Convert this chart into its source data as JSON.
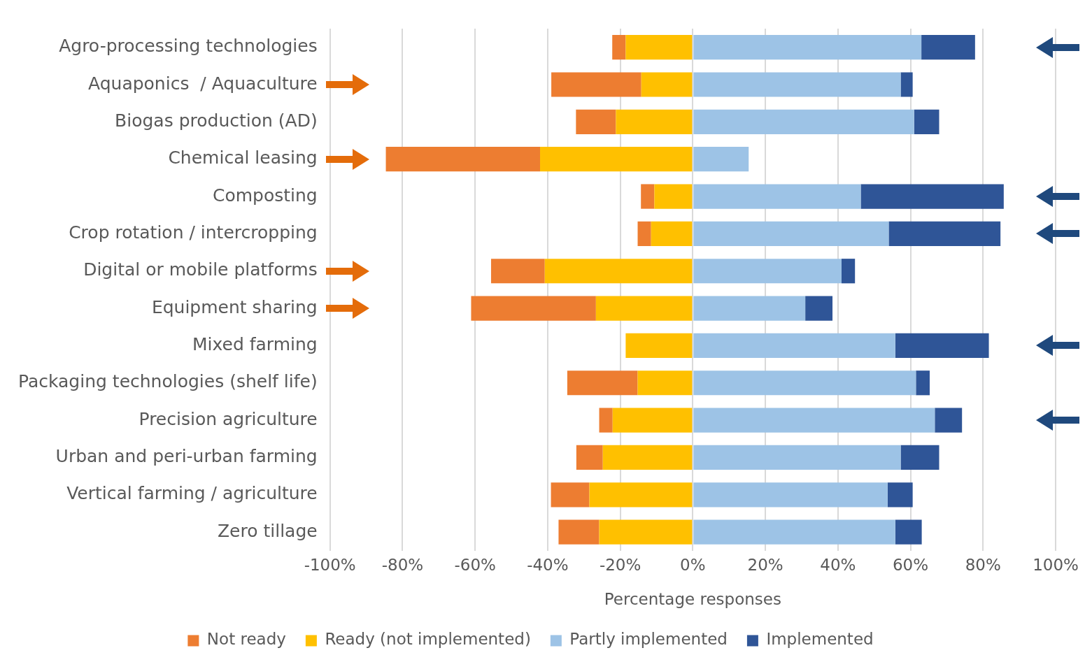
{
  "chart_data": {
    "type": "bar",
    "orientation": "horizontal",
    "stacked": true,
    "xlabel": "Percentage responses",
    "categories": [
      "Agro-processing technologies",
      "Aquaponics  / Aquaculture",
      "Biogas production (AD)",
      "Chemical leasing",
      "Composting",
      "Crop rotation / intercropping",
      "Digital or mobile platforms",
      "Equipment sharing",
      "Mixed farming",
      "Packaging technologies (shelf life)",
      "Precision agriculture",
      "Urban and peri-urban farming",
      "Vertical farming / agriculture",
      "Zero tillage"
    ],
    "series": [
      {
        "name": "Ready (not implemented)",
        "color": "#ffc000",
        "values": [
          -18.5,
          -14.2,
          -21.2,
          -42.1,
          -10.6,
          -11.5,
          -40.8,
          -26.7,
          -18.5,
          -15.2,
          -22.1,
          -24.8,
          -28.5,
          -25.8
        ]
      },
      {
        "name": "Not ready",
        "color": "#ed7d31",
        "values": [
          -3.7,
          -24.8,
          -11,
          -42.5,
          -3.7,
          -3.7,
          -14.8,
          -34.4,
          0,
          -19.4,
          -3.7,
          -7.3,
          -10.6,
          -11.2
        ]
      },
      {
        "name": "Partly implemented",
        "color": "#9dc3e6",
        "values": [
          63,
          57.3,
          61,
          15.4,
          46.3,
          54,
          41,
          31,
          55.8,
          61.5,
          66.7,
          57.3,
          53.7,
          55.8
        ]
      },
      {
        "name": "Implemented",
        "color": "#2f5597",
        "values": [
          14.8,
          3.3,
          6.9,
          0,
          39.4,
          30.8,
          3.7,
          7.5,
          25.8,
          3.8,
          7.5,
          10.6,
          6.9,
          7.3
        ]
      }
    ],
    "xlim": [
      -100,
      100
    ],
    "xticks": [
      {
        "value": -100,
        "label": "-100%"
      },
      {
        "value": -80,
        "label": "-80%"
      },
      {
        "value": -60,
        "label": "-60%"
      },
      {
        "value": -40,
        "label": "-40%"
      },
      {
        "value": -20,
        "label": "-20%"
      },
      {
        "value": 0,
        "label": "0%"
      },
      {
        "value": 20,
        "label": "20%"
      },
      {
        "value": 40,
        "label": "40%"
      },
      {
        "value": 60,
        "label": "60%"
      },
      {
        "value": 80,
        "label": "80%"
      },
      {
        "value": 100,
        "label": "100%"
      }
    ],
    "grid": "x",
    "legend": "bottom"
  }
}
